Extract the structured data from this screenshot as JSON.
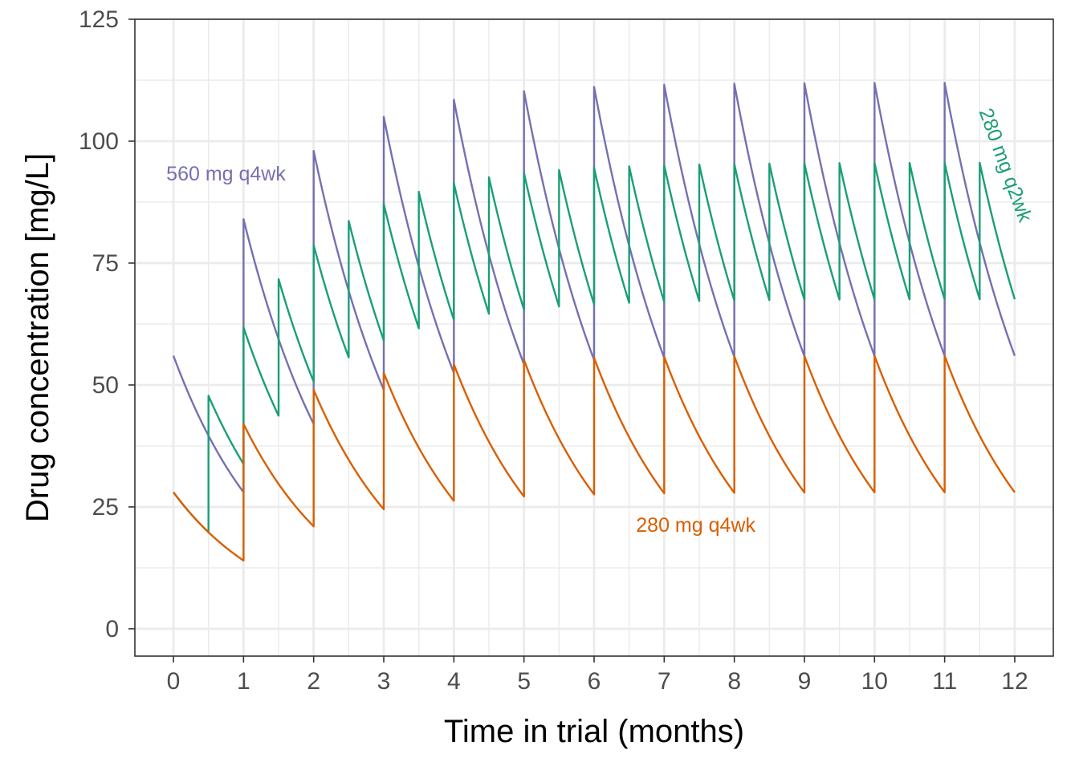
{
  "chart_data": {
    "type": "line",
    "title": "",
    "xlabel": "Time in trial (months)",
    "ylabel": "Drug concentration [mg/L]",
    "xlim": [
      -0.55,
      12.55
    ],
    "ylim": [
      -5.6,
      125
    ],
    "x_ticks": [
      0,
      1,
      2,
      3,
      4,
      5,
      6,
      7,
      8,
      9,
      10,
      11,
      12
    ],
    "x_tick_labels": [
      "0",
      "1",
      "2",
      "3",
      "4",
      "5",
      "6",
      "7",
      "8",
      "9",
      "10",
      "11",
      "12"
    ],
    "y_ticks": [
      0,
      25,
      50,
      75,
      100,
      125
    ],
    "y_tick_labels": [
      "0",
      "25",
      "50",
      "75",
      "100",
      "125"
    ],
    "grid": true,
    "legend": "none (direct labels)",
    "series": [
      {
        "name": "560 mg q4wk",
        "color": "#7570b3",
        "dose": 56,
        "interval_months": 1,
        "decay_per_interval": 0.5,
        "troughs": [
          28,
          42,
          49,
          52.5,
          54.3,
          55.1,
          55.6,
          55.8,
          55.9,
          55.9,
          56,
          56
        ],
        "peaks": [
          56,
          84,
          98,
          105,
          108.5,
          110.3,
          111.1,
          111.6,
          111.8,
          111.9,
          111.9,
          112
        ]
      },
      {
        "name": "280 mg q2wk",
        "color": "#1b9e77",
        "dose": 28,
        "interval_months": 0.5,
        "decay_per_interval": 0.7071,
        "peaks_at_month": [
          0.5,
          1,
          1.5,
          2,
          2.5,
          3,
          3.5,
          4,
          4.5,
          5,
          5.5,
          6,
          6.5,
          7,
          7.5,
          8,
          8.5,
          9,
          9.5,
          10,
          10.5,
          11,
          11.5
        ],
        "peaks": [
          48,
          62,
          72,
          78,
          84,
          87,
          90,
          91,
          93,
          94,
          94,
          95,
          95,
          95,
          95,
          95,
          95,
          95,
          95,
          95,
          96,
          95,
          96
        ],
        "end_value": 68
      },
      {
        "name": "280 mg q4wk",
        "color": "#d95f02",
        "dose": 28,
        "interval_months": 1,
        "decay_per_interval": 0.5,
        "troughs": [
          14,
          21,
          24.5,
          26.3,
          27.1,
          27.6,
          27.8,
          27.9,
          27.9,
          28,
          28,
          28
        ],
        "peaks": [
          28,
          42,
          49,
          52.5,
          54.3,
          55.1,
          55.6,
          55.8,
          55.9,
          55.9,
          56,
          56
        ]
      }
    ],
    "annotations": [
      {
        "text": "560 mg q4wk",
        "x": 0.75,
        "y": 93,
        "color": "#7570b3",
        "rotation": 0
      },
      {
        "text": "280 mg q2wk",
        "x": 11.85,
        "y": 95,
        "color": "#1b9e77",
        "rotation": 70
      },
      {
        "text": "280 mg q4wk",
        "x": 7.45,
        "y": 21,
        "color": "#d95f02",
        "rotation": 0
      }
    ]
  }
}
